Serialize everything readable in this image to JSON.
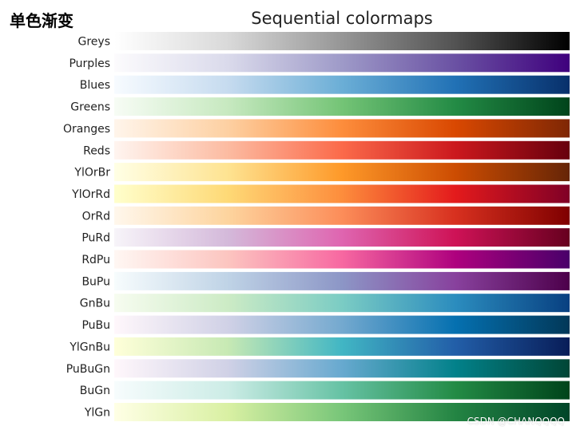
{
  "corner_label": "单色渐变",
  "watermark": "CSDN @CHANQQQQ",
  "chart_data": {
    "type": "heatmap",
    "title": "Sequential colormaps",
    "xlabel": "",
    "ylabel": "",
    "grid": false,
    "colormaps": [
      {
        "name": "Greys",
        "stops": [
          "#ffffff",
          "#d9d9d9",
          "#969696",
          "#525252",
          "#000000"
        ]
      },
      {
        "name": "Purples",
        "stops": [
          "#fcfbfd",
          "#dadaeb",
          "#9e9ac8",
          "#6a51a3",
          "#3f007d"
        ]
      },
      {
        "name": "Blues",
        "stops": [
          "#f7fbff",
          "#c6dbef",
          "#6baed6",
          "#2171b5",
          "#08306b"
        ]
      },
      {
        "name": "Greens",
        "stops": [
          "#f7fcf5",
          "#c7e9c0",
          "#74c476",
          "#238b45",
          "#00441b"
        ]
      },
      {
        "name": "Oranges",
        "stops": [
          "#fff5eb",
          "#fdd0a2",
          "#fd8d3c",
          "#d94801",
          "#7f2704"
        ]
      },
      {
        "name": "Reds",
        "stops": [
          "#fff5f0",
          "#fcbba1",
          "#fb6a4a",
          "#cb181d",
          "#67000d"
        ]
      },
      {
        "name": "YlOrBr",
        "stops": [
          "#ffffe5",
          "#fee391",
          "#fe9929",
          "#cc4c02",
          "#662506"
        ]
      },
      {
        "name": "YlOrRd",
        "stops": [
          "#ffffcc",
          "#fed976",
          "#fd8d3c",
          "#e31a1c",
          "#800026"
        ]
      },
      {
        "name": "OrRd",
        "stops": [
          "#fff7ec",
          "#fdd49e",
          "#fc8d59",
          "#d7301f",
          "#7f0000"
        ]
      },
      {
        "name": "PuRd",
        "stops": [
          "#f7f4f9",
          "#d4b9da",
          "#df65b0",
          "#ce1256",
          "#67001f"
        ]
      },
      {
        "name": "RdPu",
        "stops": [
          "#fff7f3",
          "#fcc5c0",
          "#f768a1",
          "#ae017e",
          "#49006a"
        ]
      },
      {
        "name": "BuPu",
        "stops": [
          "#f7fcfd",
          "#bfd3e6",
          "#8c96c6",
          "#88419d",
          "#4d004b"
        ]
      },
      {
        "name": "GnBu",
        "stops": [
          "#f7fcf0",
          "#ccebc5",
          "#7bccc4",
          "#2b8cbe",
          "#084081"
        ]
      },
      {
        "name": "PuBu",
        "stops": [
          "#fff7fb",
          "#d0d1e6",
          "#74a9cf",
          "#0570b0",
          "#023858"
        ]
      },
      {
        "name": "YlGnBu",
        "stops": [
          "#ffffd9",
          "#c7e9b4",
          "#41b6c4",
          "#225ea8",
          "#081d58"
        ]
      },
      {
        "name": "PuBuGn",
        "stops": [
          "#fff7fb",
          "#d0d1e6",
          "#67a9cf",
          "#02818a",
          "#014636"
        ]
      },
      {
        "name": "BuGn",
        "stops": [
          "#f7fcfd",
          "#ccece6",
          "#66c2a4",
          "#238b45",
          "#00441b"
        ]
      },
      {
        "name": "YlGn",
        "stops": [
          "#ffffe5",
          "#d9f0a3",
          "#78c679",
          "#238443",
          "#004529"
        ]
      }
    ]
  }
}
